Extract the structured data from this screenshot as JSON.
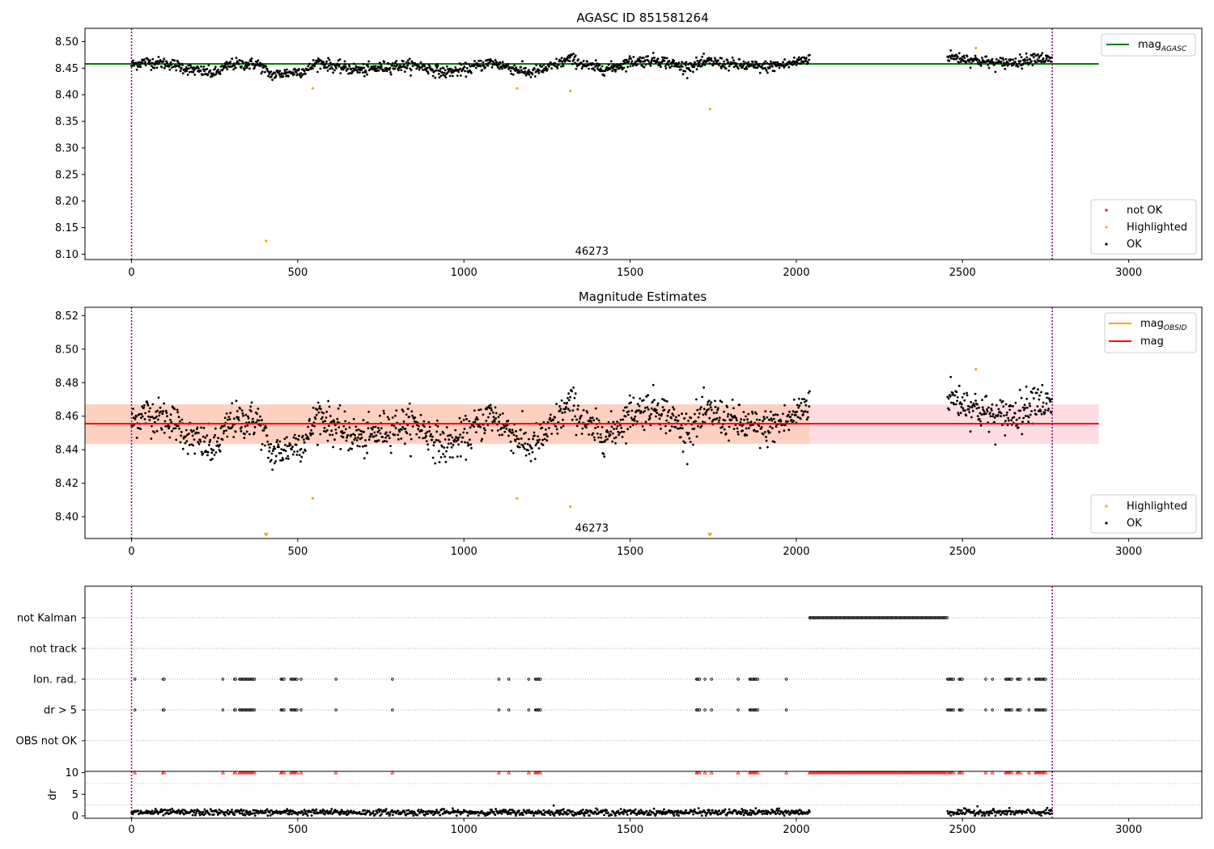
{
  "chart_data": [
    {
      "id": "top",
      "type": "scatter",
      "title": "AGASC ID 851581264",
      "xlim": [
        -140,
        3220
      ],
      "ylim": [
        8.09,
        8.525
      ],
      "yticks": [
        8.1,
        8.15,
        8.2,
        8.25,
        8.3,
        8.35,
        8.4,
        8.45,
        8.5
      ],
      "ytick_labels": [
        "8.10",
        "8.15",
        "8.20",
        "8.25",
        "8.30",
        "8.35",
        "8.40",
        "8.45",
        "8.50"
      ],
      "xticks": [
        0,
        500,
        1000,
        1500,
        2000,
        2500,
        3000
      ],
      "xtick_labels": [
        "0",
        "500",
        "1000",
        "1500",
        "2000",
        "2500",
        "3000"
      ],
      "vlines": [
        0,
        2770
      ],
      "hline": {
        "name": "mag",
        "sub": "AGASC",
        "y": 8.458,
        "x": [
          -140,
          2910
        ],
        "color": "#008000"
      },
      "annotation": {
        "text": "46273",
        "x": 1385,
        "y": 8.105
      },
      "highlighted": [
        [
          405,
          8.125
        ],
        [
          545,
          8.412
        ],
        [
          1160,
          8.412
        ],
        [
          1320,
          8.407
        ],
        [
          1740,
          8.373
        ],
        [
          2540,
          8.488
        ]
      ],
      "legend_upper": "top-right",
      "legend_lower": "bottom-right",
      "legend_lower_entries": [
        {
          "label": "not OK",
          "color": "#ff0000"
        },
        {
          "label": "Highlighted",
          "color": "#ffa500"
        },
        {
          "label": "OK",
          "color": "#000000"
        }
      ]
    },
    {
      "id": "mid",
      "type": "scatter",
      "title": "Magnitude Estimates",
      "xlim": [
        -140,
        3220
      ],
      "ylim": [
        8.387,
        8.525
      ],
      "yticks": [
        8.4,
        8.42,
        8.44,
        8.46,
        8.48,
        8.5,
        8.52
      ],
      "ytick_labels": [
        "8.40",
        "8.42",
        "8.44",
        "8.46",
        "8.48",
        "8.50",
        "8.52"
      ],
      "xticks": [
        0,
        500,
        1000,
        1500,
        2000,
        2500,
        3000
      ],
      "xtick_labels": [
        "0",
        "500",
        "1000",
        "1500",
        "2000",
        "2500",
        "3000"
      ],
      "vlines": [
        0,
        2770
      ],
      "band_pink": {
        "x": [
          -140,
          2910
        ],
        "y": [
          8.4435,
          8.467
        ],
        "color": "#ffc0cb"
      },
      "band_orange": {
        "x": [
          -140,
          2040
        ],
        "y": [
          8.4435,
          8.467
        ],
        "color": "#ffc8a8"
      },
      "hline": {
        "name": "mag",
        "y": 8.4555,
        "x": [
          -140,
          2910
        ],
        "color": "#ff0000"
      },
      "obsid_line": {
        "name": "mag",
        "sub": "OBSID",
        "color": "#ffa500"
      },
      "annotation": {
        "text": "46273",
        "x": 1385,
        "y": 8.393
      },
      "highlighted": [
        [
          545,
          8.411
        ],
        [
          1160,
          8.411
        ],
        [
          1320,
          8.406
        ],
        [
          2540,
          8.488
        ]
      ],
      "offscale_markers": [
        405,
        1740
      ],
      "legend_upper": "top-right",
      "legend_lower": "bottom-right",
      "legend_lower_entries": [
        {
          "label": "Highlighted",
          "color": "#ffa500"
        },
        {
          "label": "OK",
          "color": "#000000"
        }
      ]
    },
    {
      "id": "flags",
      "type": "scatter",
      "xlim": [
        -140,
        3220
      ],
      "categories": [
        "OBS not OK",
        "dr > 5",
        "Ion. rad.",
        "not track",
        "not Kalman"
      ],
      "flags": {
        "not Kalman": [
          [
            2040,
            2455
          ]
        ],
        "not track": [],
        "Ion. rad.": [
          [
            10,
            10
          ],
          [
            95,
            100
          ],
          [
            275,
            275
          ],
          [
            310,
            315
          ],
          [
            325,
            370
          ],
          [
            450,
            460
          ],
          [
            480,
            500
          ],
          [
            510,
            510
          ],
          [
            615,
            615
          ],
          [
            785,
            785
          ],
          [
            1105,
            1105
          ],
          [
            1135,
            1135
          ],
          [
            1195,
            1195
          ],
          [
            1215,
            1230
          ],
          [
            1700,
            1710
          ],
          [
            1725,
            1725
          ],
          [
            1745,
            1745
          ],
          [
            1825,
            1825
          ],
          [
            1860,
            1885
          ],
          [
            1970,
            1970
          ],
          [
            2455,
            2475
          ],
          [
            2490,
            2500
          ],
          [
            2570,
            2570
          ],
          [
            2590,
            2590
          ],
          [
            2630,
            2650
          ],
          [
            2665,
            2675
          ],
          [
            2700,
            2700
          ],
          [
            2720,
            2750
          ]
        ],
        "dr > 5": [
          [
            10,
            10
          ],
          [
            95,
            100
          ],
          [
            275,
            275
          ],
          [
            310,
            315
          ],
          [
            325,
            370
          ],
          [
            450,
            460
          ],
          [
            480,
            500
          ],
          [
            510,
            510
          ],
          [
            615,
            615
          ],
          [
            785,
            785
          ],
          [
            1105,
            1105
          ],
          [
            1135,
            1135
          ],
          [
            1195,
            1195
          ],
          [
            1215,
            1230
          ],
          [
            1700,
            1710
          ],
          [
            1725,
            1725
          ],
          [
            1745,
            1745
          ],
          [
            1825,
            1825
          ],
          [
            1860,
            1885
          ],
          [
            1970,
            1970
          ],
          [
            2455,
            2475
          ],
          [
            2490,
            2500
          ],
          [
            2570,
            2570
          ],
          [
            2590,
            2590
          ],
          [
            2630,
            2650
          ],
          [
            2665,
            2675
          ],
          [
            2700,
            2700
          ],
          [
            2720,
            2750
          ]
        ],
        "OBS not OK": []
      }
    },
    {
      "id": "dr",
      "type": "scatter",
      "ylabel": "dr",
      "xlim": [
        -140,
        3220
      ],
      "ylim": [
        0,
        10.3
      ],
      "yticks": [
        0,
        5,
        10
      ],
      "ytick_labels": [
        "0",
        "5",
        "10"
      ],
      "xticks": [
        0,
        500,
        1000,
        1500,
        2000,
        2500,
        3000
      ],
      "xtick_labels": [
        "0",
        "500",
        "1000",
        "1500",
        "2000",
        "2500",
        "3000"
      ],
      "vlines": [
        0,
        2770
      ],
      "ok_segments": [
        [
          0,
          2040
        ],
        [
          2455,
          2770
        ]
      ],
      "outliers": [
        [
          1270,
          2.4
        ],
        [
          2545,
          2.2
        ]
      ]
    }
  ]
}
